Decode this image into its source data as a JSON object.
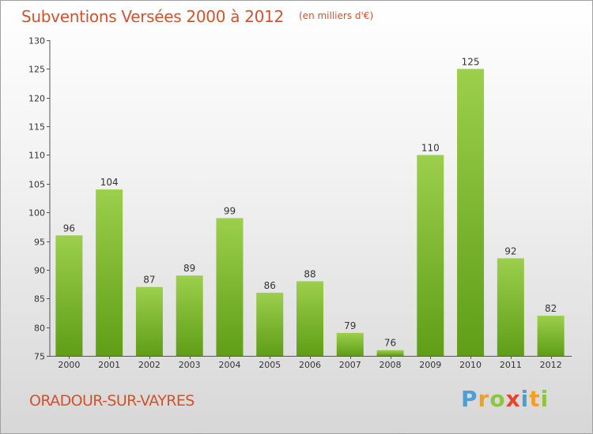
{
  "chart_data": {
    "type": "bar",
    "title": "Subventions Versées 2000 à 2012",
    "subtitle": "(en milliers d'€)",
    "categories": [
      "2000",
      "2001",
      "2002",
      "2003",
      "2004",
      "2005",
      "2006",
      "2007",
      "2008",
      "2009",
      "2010",
      "2011",
      "2012"
    ],
    "values": [
      96,
      104,
      87,
      89,
      99,
      86,
      88,
      79,
      76,
      110,
      125,
      92,
      82
    ],
    "ylim": [
      75,
      130
    ],
    "yticks": [
      75,
      80,
      85,
      90,
      95,
      100,
      105,
      110,
      115,
      120,
      125,
      130
    ],
    "grid": false,
    "bar_color_top": "#9ccf4c",
    "bar_color_bottom": "#5f9e16"
  },
  "footer": {
    "commune": "ORADOUR-SUR-VAYRES"
  },
  "logo": {
    "text": "Proxiti",
    "letters": [
      {
        "ch": "P",
        "color": "#4a9fd6"
      },
      {
        "ch": "r",
        "color": "#f0a02a"
      },
      {
        "ch": "o",
        "color": "#8cc63e"
      },
      {
        "ch": "x",
        "color": "#e8452c"
      },
      {
        "ch": "i",
        "color": "#4a9fd6"
      },
      {
        "ch": "t",
        "color": "#f0a02a"
      },
      {
        "ch": "i",
        "color": "#8cc63e"
      }
    ]
  }
}
